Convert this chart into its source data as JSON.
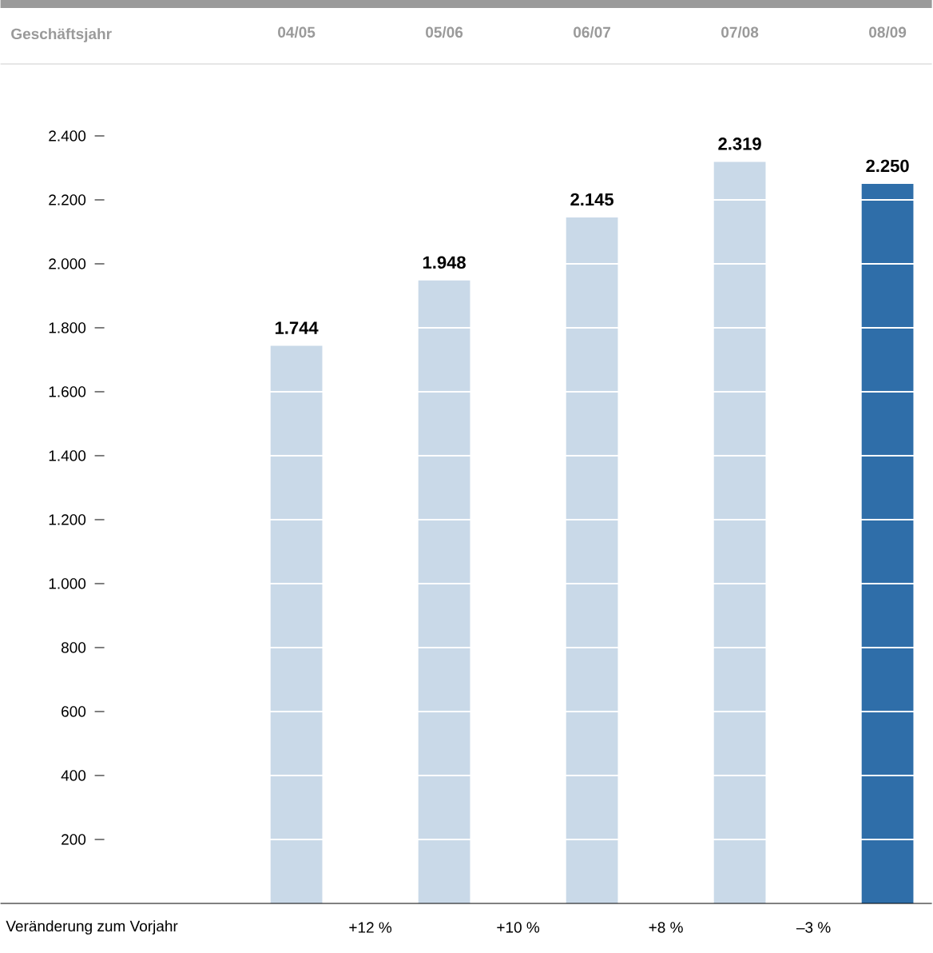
{
  "chart_data": {
    "type": "bar",
    "xlabel": "Geschäftsjahr",
    "categories": [
      "04/05",
      "05/06",
      "06/07",
      "07/08",
      "08/09"
    ],
    "values": [
      1744,
      1948,
      2145,
      2319,
      2250
    ],
    "value_labels": [
      "1.744",
      "1.948",
      "2.145",
      "2.319",
      "2.250"
    ],
    "colors": [
      "#c9d9e8",
      "#c9d9e8",
      "#c9d9e8",
      "#c9d9e8",
      "#2f6ea9"
    ],
    "ylim": [
      0,
      2400
    ],
    "yticks": [
      {
        "value": 200,
        "label": "200"
      },
      {
        "value": 400,
        "label": "400"
      },
      {
        "value": 600,
        "label": "600"
      },
      {
        "value": 800,
        "label": "800"
      },
      {
        "value": 1000,
        "label": "1.000"
      },
      {
        "value": 1200,
        "label": "1.200"
      },
      {
        "value": 1400,
        "label": "1.400"
      },
      {
        "value": 1600,
        "label": "1.600"
      },
      {
        "value": 1800,
        "label": "1.800"
      },
      {
        "value": 2000,
        "label": "2.000"
      },
      {
        "value": 2200,
        "label": "2.200"
      },
      {
        "value": 2400,
        "label": "2.400"
      }
    ],
    "grid": "y",
    "annotations": [
      "Veränderung zum Vorjahr",
      "+12 %",
      "+10 %",
      "+8 %",
      "–3 %"
    ]
  }
}
